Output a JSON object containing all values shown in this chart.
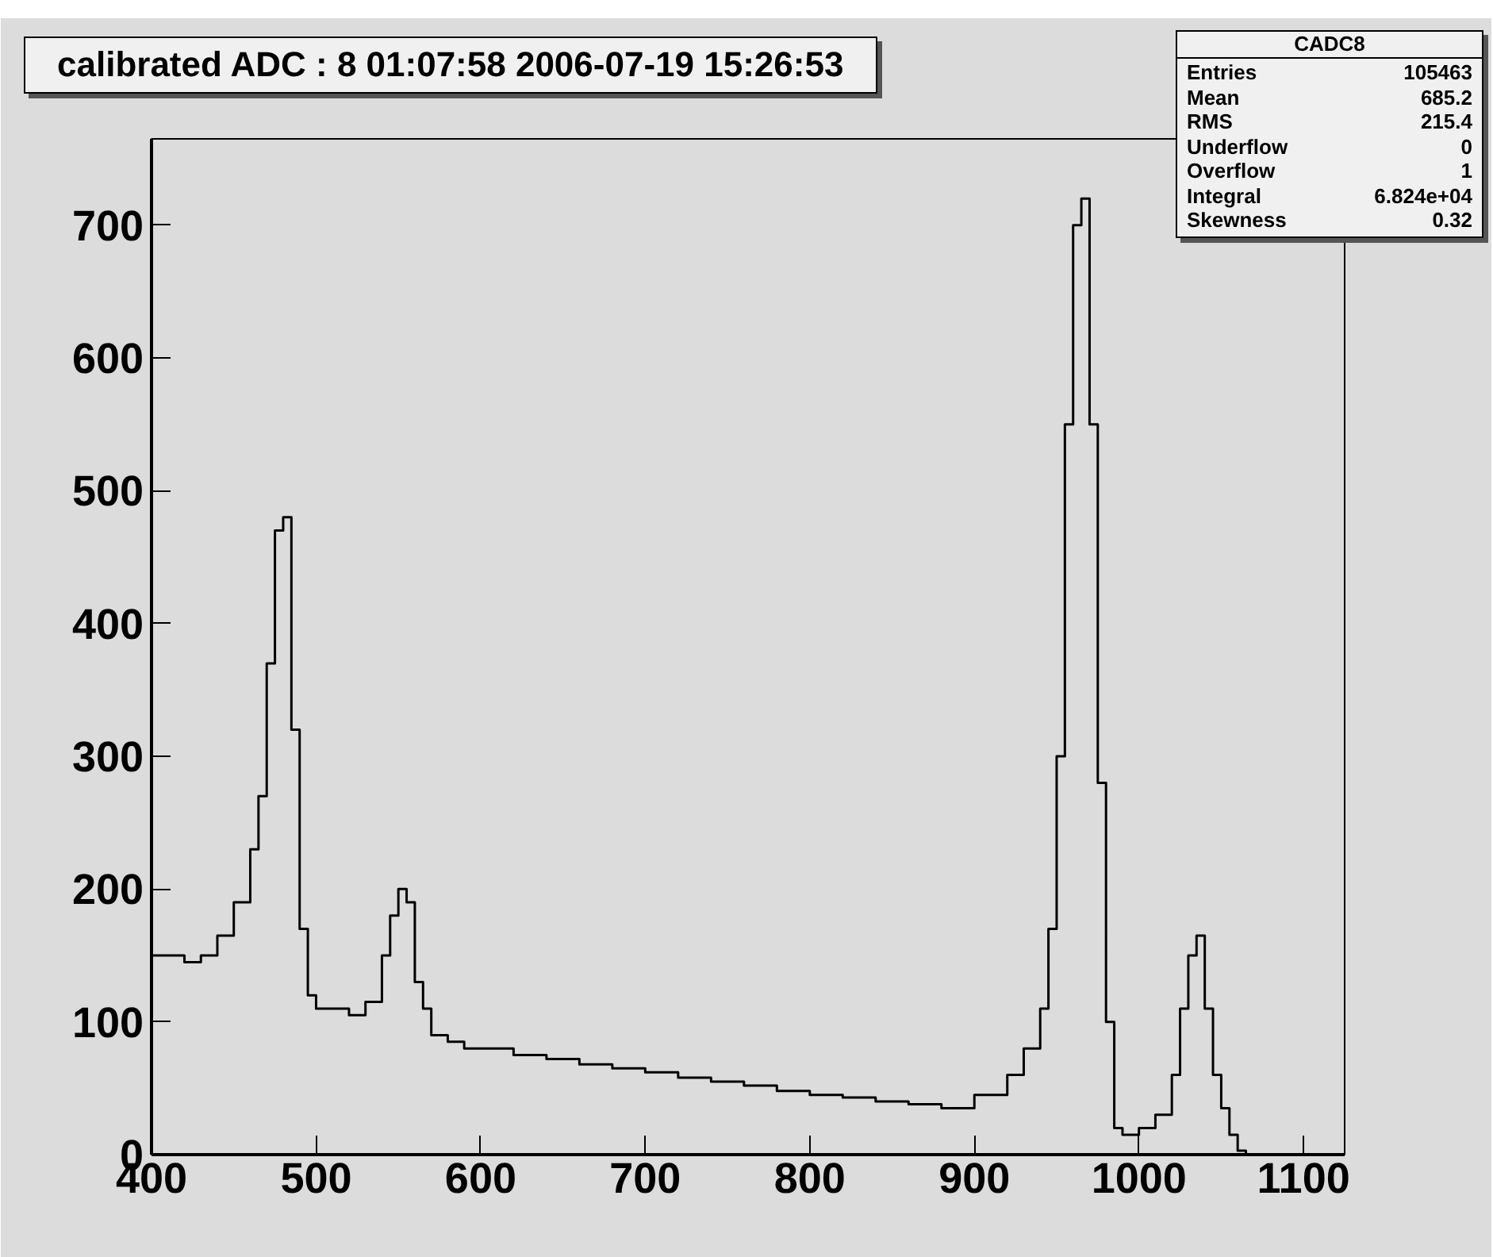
{
  "chart_data": {
    "type": "histogram",
    "title": "calibrated ADC :  8  01:07:58  2006-07-19  15:26:53",
    "bins": [
      400,
      410,
      420,
      430,
      440,
      450,
      460,
      465,
      470,
      475,
      480,
      485,
      490,
      495,
      500,
      510,
      520,
      530,
      540,
      545,
      550,
      555,
      560,
      565,
      570,
      580,
      590,
      600,
      620,
      640,
      660,
      680,
      700,
      720,
      740,
      760,
      780,
      800,
      820,
      840,
      860,
      880,
      900,
      920,
      930,
      940,
      945,
      950,
      955,
      960,
      965,
      970,
      975,
      980,
      985,
      990,
      1000,
      1010,
      1020,
      1025,
      1030,
      1035,
      1040,
      1045,
      1050,
      1055,
      1060,
      1065,
      1070
    ],
    "values": [
      150,
      150,
      145,
      150,
      165,
      190,
      230,
      270,
      370,
      470,
      480,
      320,
      170,
      120,
      110,
      110,
      105,
      115,
      150,
      180,
      200,
      190,
      130,
      110,
      90,
      85,
      80,
      80,
      75,
      72,
      68,
      65,
      62,
      58,
      55,
      52,
      48,
      45,
      43,
      40,
      38,
      35,
      45,
      60,
      80,
      110,
      170,
      300,
      550,
      700,
      720,
      550,
      280,
      100,
      20,
      15,
      20,
      30,
      60,
      110,
      150,
      165,
      110,
      60,
      35,
      15,
      3,
      0
    ],
    "color": "#000000",
    "xlim": [
      400,
      1125
    ],
    "ylim": [
      0,
      765
    ],
    "xticks": [
      400,
      500,
      600,
      700,
      800,
      900,
      1000,
      1100
    ],
    "yticks": [
      0,
      100,
      200,
      300,
      400,
      500,
      600,
      700
    ],
    "grid": false,
    "annotations": [
      "CADC8",
      "Entries",
      "105463",
      "Mean",
      "685.2",
      "RMS",
      "215.4",
      "Underflow",
      "0",
      "Overflow",
      "1",
      "Integral",
      "6.824e+04",
      "Skewness",
      "0.32"
    ]
  }
}
